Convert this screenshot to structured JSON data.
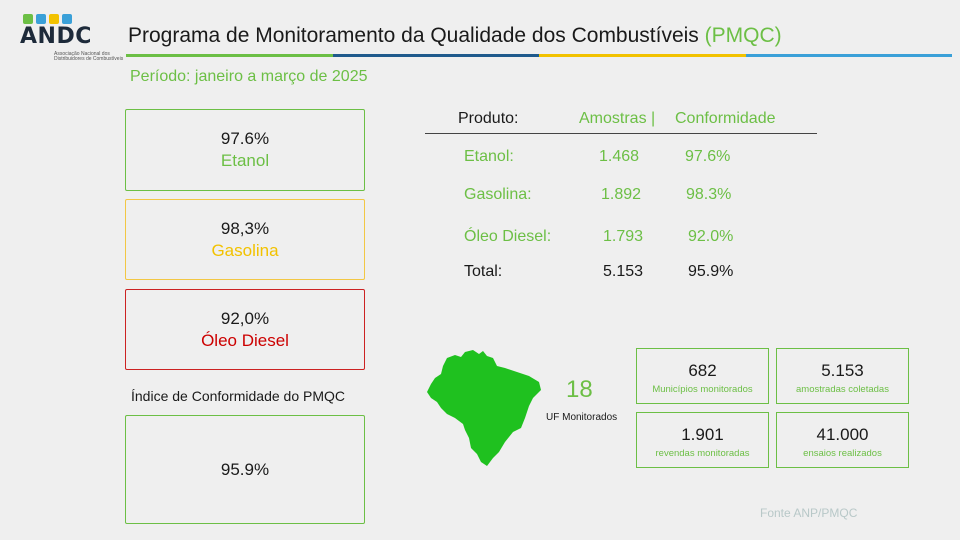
{
  "logo": {
    "wordmark": "ANDC",
    "subtitle": "Associação Nacional dos Distribuidores de Combustíveis",
    "icon_names": [
      "fuel-drop-icon",
      "leaf-icon",
      "gear-icon",
      "drop-icon"
    ],
    "icon_colors": [
      "#6cbf45",
      "#3aa0d8",
      "#f2c200",
      "#3aa0d8"
    ]
  },
  "header": {
    "title": "Programa de Monitoramento da Qualidade dos Combustíveis",
    "title_accent": "(PMQC)",
    "period": "Período: janeiro a março de 2025",
    "line_colors": [
      "#6cbf45",
      "#1f5a8c",
      "#f2c200",
      "#3aa0d8"
    ]
  },
  "cards": [
    {
      "pct": "97.6%",
      "name": "Etanol",
      "color": "#6cbf45"
    },
    {
      "pct": "98,3%",
      "name": "Gasolina",
      "color": "#f2c200"
    },
    {
      "pct": "92,0%",
      "name": "Óleo Diesel",
      "color": "#cc0000"
    }
  ],
  "index": {
    "label": "Índice de Conformidade do PMQC",
    "value": "95.9%"
  },
  "table": {
    "headers": {
      "product": "Produto:",
      "samples": "Amostras |",
      "conformity": "Conformidade"
    },
    "rows": [
      {
        "product": "Etanol:",
        "samples": "1.468",
        "conformity": "97.6%"
      },
      {
        "product": "Gasolina:",
        "samples": "1.892",
        "conformity": "98.3%"
      },
      {
        "product": "Óleo Diesel:",
        "samples": "1.793",
        "conformity": "92.0%"
      }
    ],
    "total": {
      "product": "Total:",
      "samples": "5.153",
      "conformity": "95.9%"
    }
  },
  "map": {
    "icon": "brazil-map-icon",
    "color": "#1fc11f",
    "uf_count": "18",
    "uf_label": "UF Monitorados"
  },
  "stats": [
    {
      "value": "682",
      "label": "Municípios monitorados"
    },
    {
      "value": "5.153",
      "label": "amostradas coletadas"
    },
    {
      "value": "1.901",
      "label": "revendas monitoradas"
    },
    {
      "value": "41.000",
      "label": "ensaios realizados"
    }
  ],
  "source": "Fonte ANP/PMQC"
}
